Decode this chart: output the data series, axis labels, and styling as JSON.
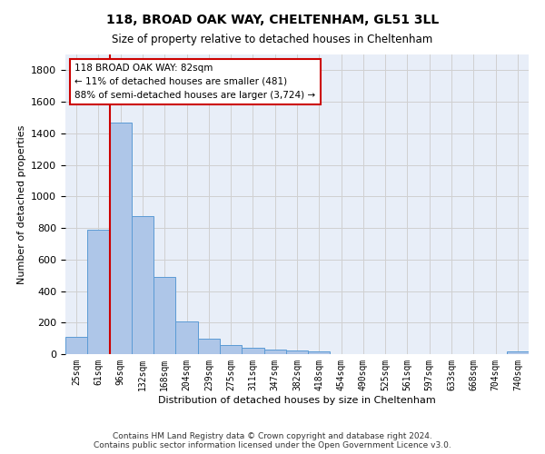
{
  "title1": "118, BROAD OAK WAY, CHELTENHAM, GL51 3LL",
  "title2": "Size of property relative to detached houses in Cheltenham",
  "xlabel": "Distribution of detached houses by size in Cheltenham",
  "ylabel": "Number of detached properties",
  "footer1": "Contains HM Land Registry data © Crown copyright and database right 2024.",
  "footer2": "Contains public sector information licensed under the Open Government Licence v3.0.",
  "categories": [
    "25sqm",
    "61sqm",
    "96sqm",
    "132sqm",
    "168sqm",
    "204sqm",
    "239sqm",
    "275sqm",
    "311sqm",
    "347sqm",
    "382sqm",
    "418sqm",
    "454sqm",
    "490sqm",
    "525sqm",
    "561sqm",
    "597sqm",
    "633sqm",
    "668sqm",
    "704sqm",
    "740sqm"
  ],
  "values": [
    110,
    790,
    1470,
    875,
    490,
    205,
    100,
    60,
    40,
    28,
    22,
    18,
    0,
    0,
    0,
    0,
    0,
    0,
    0,
    0,
    15
  ],
  "bar_color": "#aec6e8",
  "bar_edge_color": "#5b9bd5",
  "grid_color": "#d0d0d0",
  "vline_x": 1.5,
  "vline_color": "#cc0000",
  "annotation_text": "118 BROAD OAK WAY: 82sqm\n← 11% of detached houses are smaller (481)\n88% of semi-detached houses are larger (3,724) →",
  "annotation_box_color": "#ffffff",
  "annotation_box_edge": "#cc0000",
  "ylim": [
    0,
    1900
  ],
  "yticks": [
    0,
    200,
    400,
    600,
    800,
    1000,
    1200,
    1400,
    1600,
    1800
  ],
  "bg_color": "#ffffff",
  "plot_bg_color": "#e8eef8"
}
